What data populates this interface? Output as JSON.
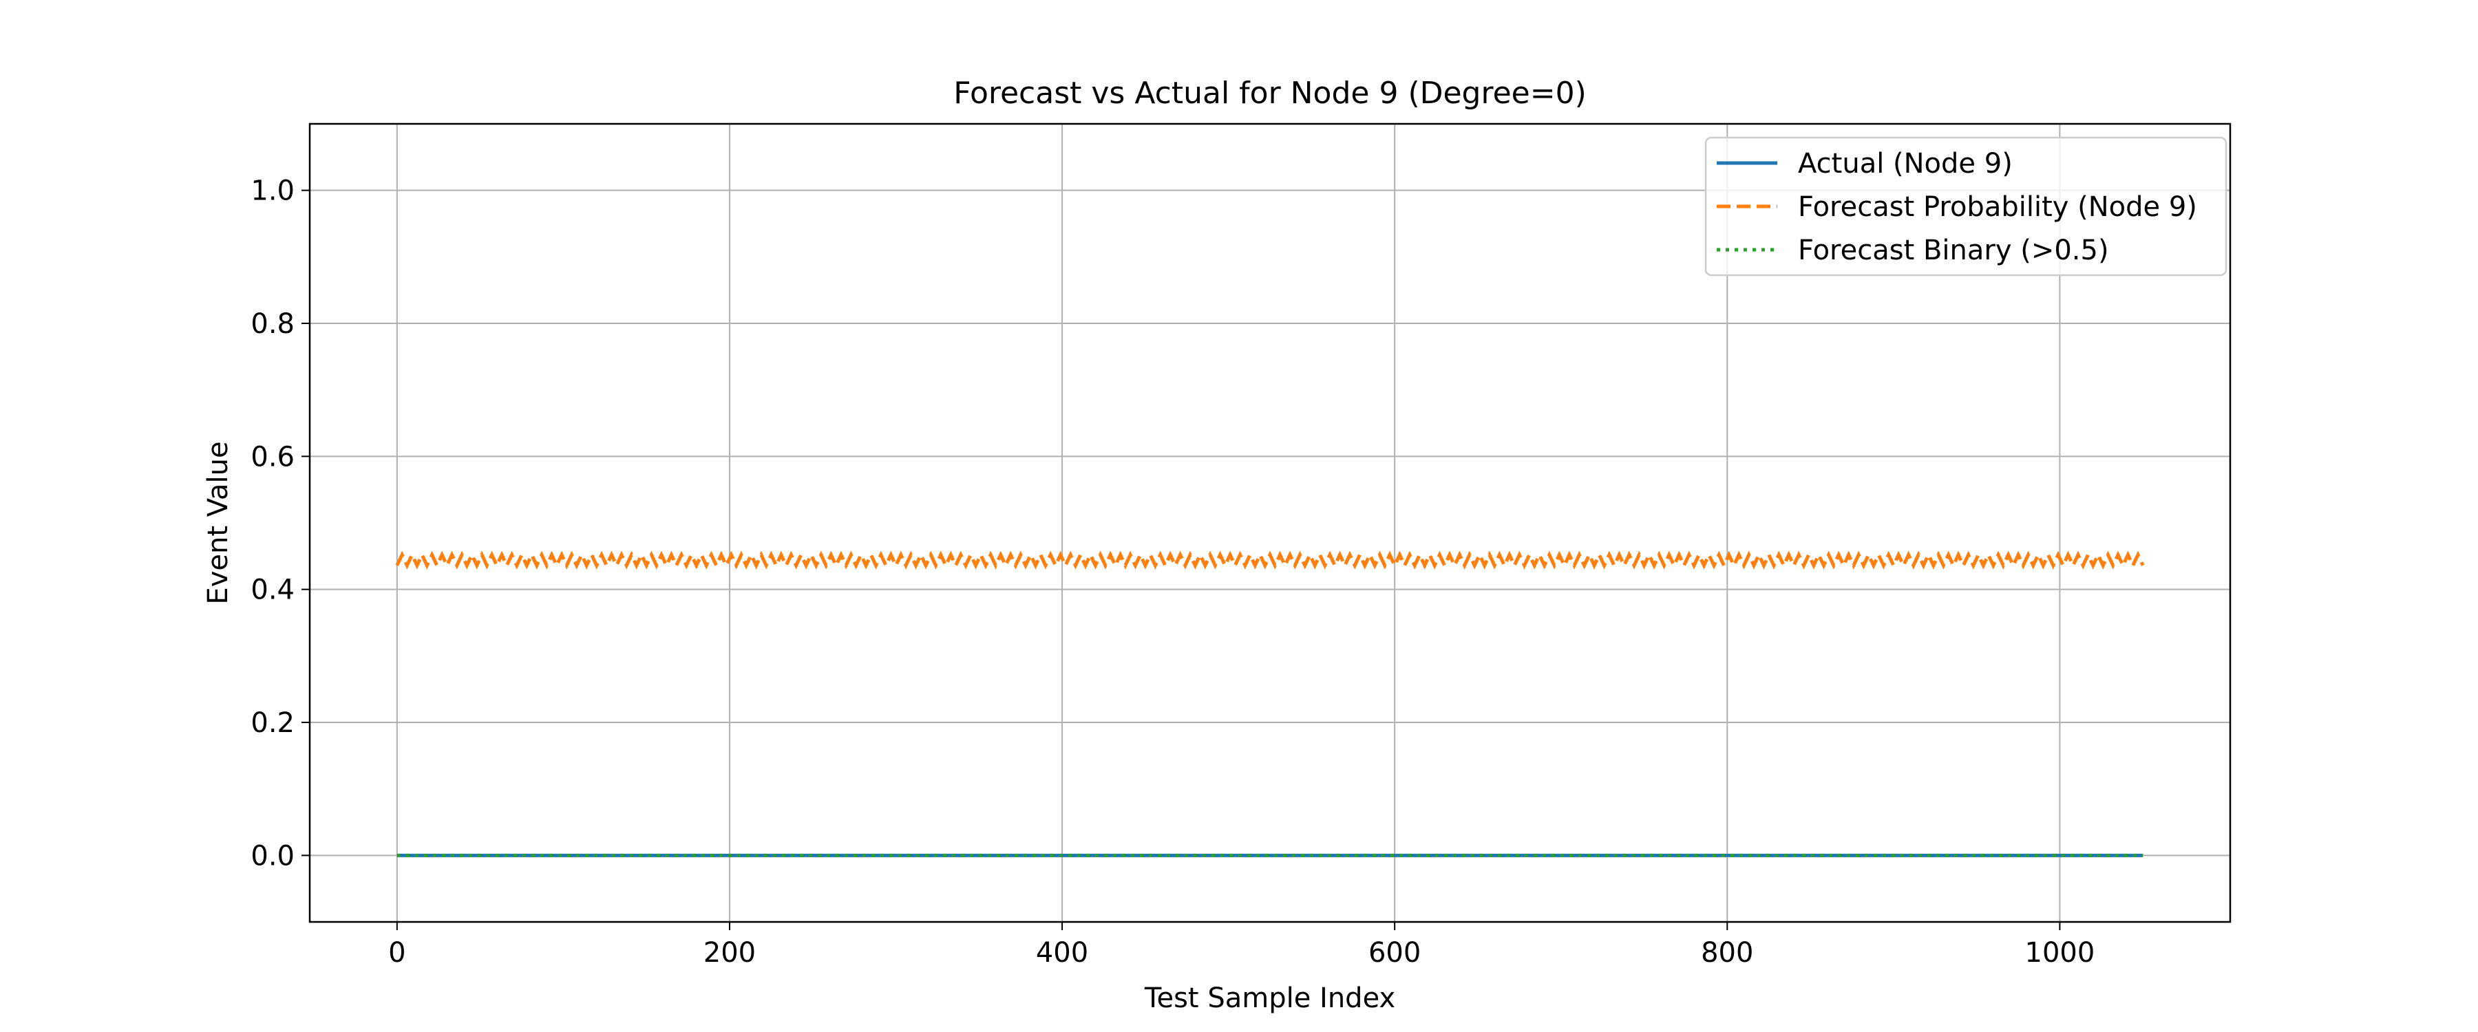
{
  "chart_data": {
    "type": "line",
    "title": "Forecast vs Actual for Node 9 (Degree=0)",
    "xlabel": "Test Sample Index",
    "ylabel": "Event Value",
    "xlim": [
      -52.5,
      1102.5
    ],
    "ylim": [
      -0.1,
      1.1
    ],
    "xticks": [
      0,
      200,
      400,
      600,
      800,
      1000
    ],
    "xtick_labels": [
      "0",
      "200",
      "400",
      "600",
      "800",
      "1000"
    ],
    "yticks": [
      0.0,
      0.2,
      0.4,
      0.6,
      0.8,
      1.0
    ],
    "ytick_labels": [
      "0.0",
      "0.2",
      "0.4",
      "0.6",
      "0.8",
      "1.0"
    ],
    "grid": true,
    "legend_position": "top-right",
    "x_range": [
      0,
      1050
    ],
    "series": [
      {
        "name": "Actual (Node 9)",
        "style": "solid",
        "color": "#1f77b4",
        "values_constant": 0.0
      },
      {
        "name": "Forecast Probability (Node 9)",
        "style": "dashed",
        "color": "#ff7f0e",
        "oscillation_low": 0.436,
        "oscillation_high": 0.452
      },
      {
        "name": "Forecast Binary (>0.5)",
        "style": "dotted",
        "color": "#2ca02c",
        "values_constant": 0.0
      }
    ]
  }
}
